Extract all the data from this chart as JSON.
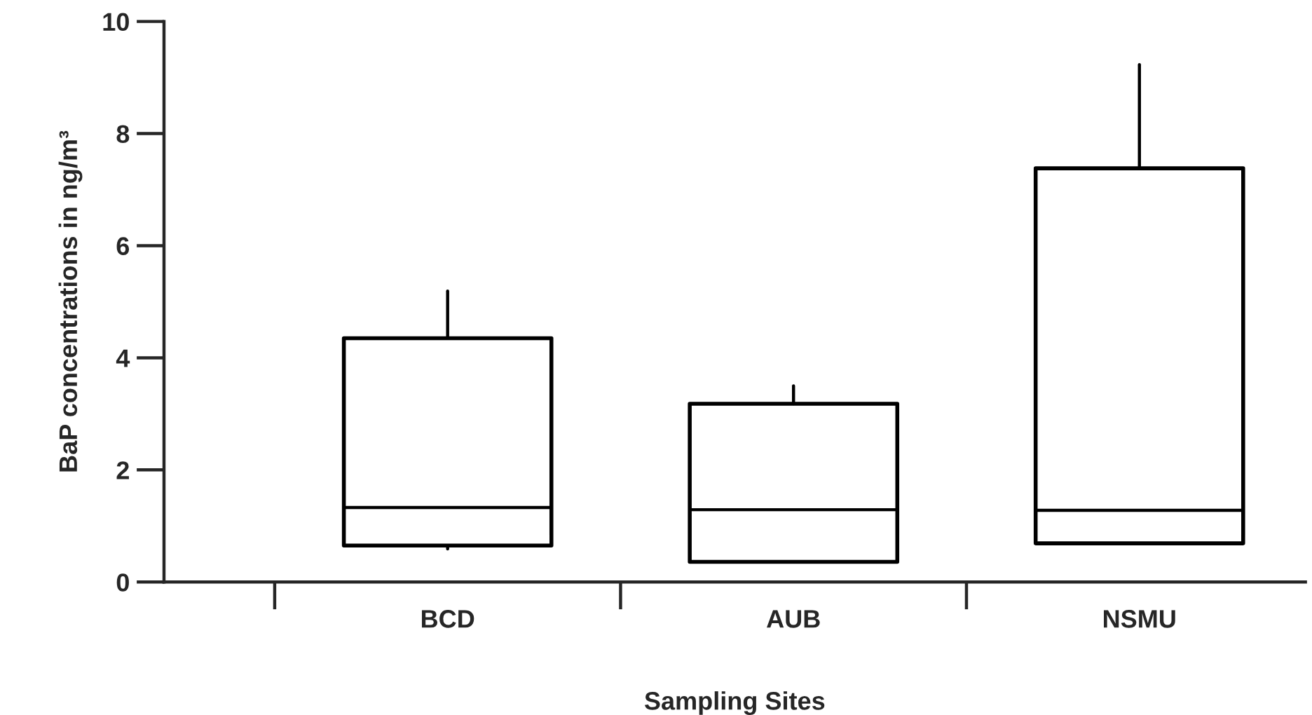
{
  "chart_data": {
    "type": "box",
    "xlabel": "Sampling Sites",
    "ylabel": "BaP concentrations in ng/m³",
    "categories": [
      "BCD",
      "AUB",
      "NSMU"
    ],
    "boxes": [
      {
        "low": 0.59,
        "q1": 0.65,
        "median": 1.33,
        "q3": 4.35,
        "high": 5.19
      },
      {
        "low": 0.36,
        "q1": 0.36,
        "median": 1.29,
        "q3": 3.18,
        "high": 3.5
      },
      {
        "low": 0.69,
        "q1": 0.69,
        "median": 1.28,
        "q3": 7.38,
        "high": 9.23
      }
    ],
    "ylim": [
      0,
      10
    ],
    "yticks": [
      0,
      2,
      4,
      6,
      8,
      10
    ],
    "grid": false,
    "legend": false
  }
}
